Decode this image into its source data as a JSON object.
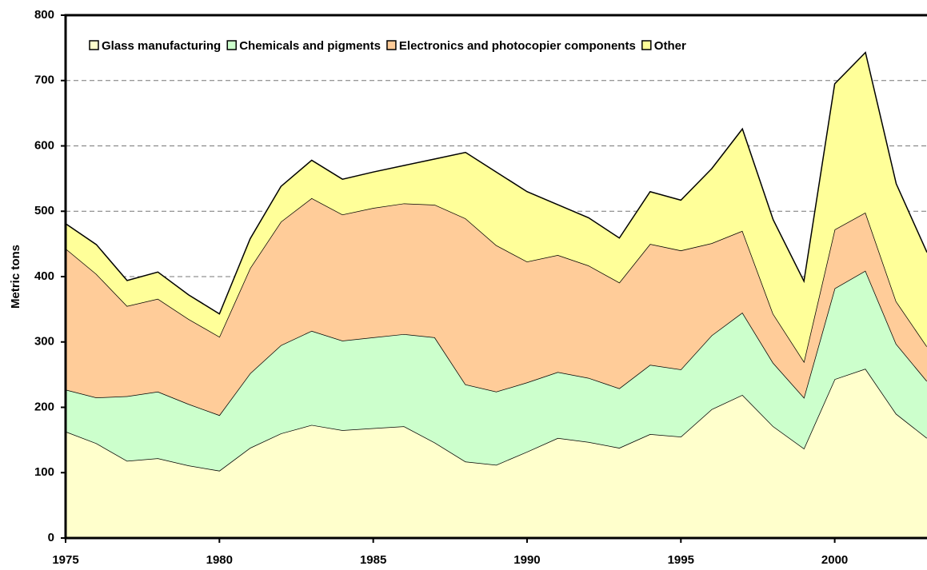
{
  "chart_data": {
    "type": "stacked_area",
    "y_label": "Metric tons",
    "x": [
      1975,
      1976,
      1977,
      1978,
      1979,
      1980,
      1981,
      1982,
      1983,
      1984,
      1985,
      1986,
      1987,
      1988,
      1989,
      1990,
      1991,
      1992,
      1993,
      1994,
      1995,
      1996,
      1997,
      1998,
      1999,
      2000,
      2001,
      2002,
      2003
    ],
    "series": [
      {
        "name": "Glass manufacturing",
        "color": "#ffffcc",
        "values": [
          163,
          145,
          118,
          122,
          111,
          103,
          138,
          160,
          173,
          165,
          168,
          171,
          146,
          117,
          112,
          132,
          153,
          147,
          138,
          159,
          155,
          197,
          219,
          171,
          137,
          243,
          259,
          190,
          153
        ]
      },
      {
        "name": "Chemicals and pigments",
        "color": "#ccffcc",
        "values": [
          64,
          70,
          99,
          102,
          94,
          85,
          114,
          135,
          144,
          137,
          139,
          141,
          161,
          118,
          112,
          106,
          101,
          98,
          91,
          106,
          103,
          113,
          126,
          97,
          78,
          139,
          150,
          107,
          87
        ]
      },
      {
        "name": "Electronics and photocopier components",
        "color": "#ffcc99",
        "values": [
          216,
          189,
          138,
          142,
          130,
          120,
          161,
          189,
          203,
          193,
          198,
          200,
          203,
          254,
          224,
          185,
          179,
          172,
          162,
          185,
          182,
          141,
          125,
          75,
          55,
          90,
          89,
          65,
          53
        ]
      },
      {
        "name": "Other",
        "color": "#ffff99",
        "values": [
          38,
          45,
          39,
          41,
          37,
          35,
          45,
          54,
          58,
          54,
          55,
          58,
          70,
          101,
          112,
          107,
          77,
          73,
          68,
          80,
          77,
          114,
          156,
          144,
          123,
          223,
          245,
          180,
          144
        ]
      }
    ],
    "xlim": [
      1975,
      2003
    ],
    "xticks": [
      1975,
      1980,
      1985,
      1990,
      1995,
      2000
    ],
    "ylim": [
      0,
      800
    ],
    "yticks": [
      0,
      100,
      200,
      300,
      400,
      500,
      600,
      700,
      800
    ],
    "grid": true,
    "legend": "top"
  }
}
